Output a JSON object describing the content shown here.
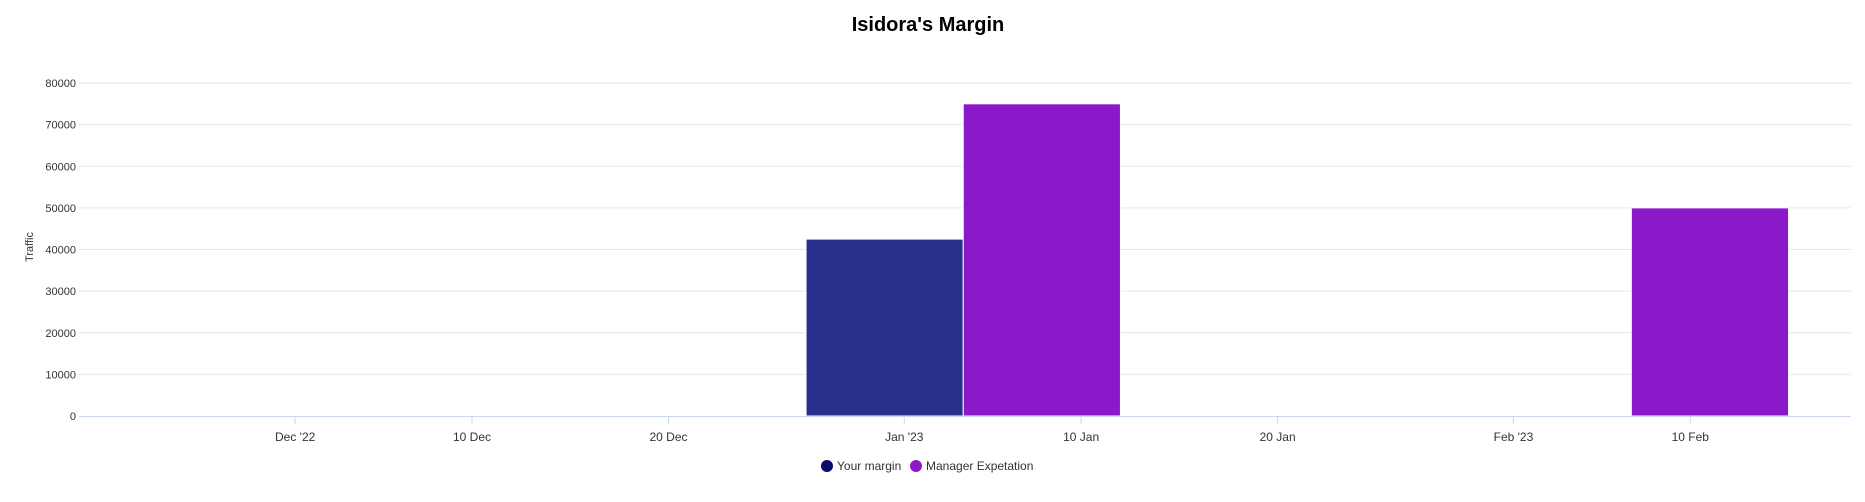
{
  "chart_data": {
    "type": "bar",
    "title": "Isidora's Margin",
    "ylabel": "Traffic",
    "xlabel": "",
    "ylim": [
      0,
      80000
    ],
    "yticks": [
      0,
      10000,
      20000,
      30000,
      40000,
      50000,
      60000,
      70000,
      80000
    ],
    "xlim": [
      "2022-11-20",
      "2023-02-22"
    ],
    "xticks": [
      {
        "date": "2022-12-01",
        "label": "Dec '22"
      },
      {
        "date": "2022-12-10",
        "label": "10 Dec"
      },
      {
        "date": "2022-12-20",
        "label": "20 Dec"
      },
      {
        "date": "2023-01-01",
        "label": "Jan '23"
      },
      {
        "date": "2023-01-10",
        "label": "10 Jan"
      },
      {
        "date": "2023-01-20",
        "label": "20 Jan"
      },
      {
        "date": "2023-02-01",
        "label": "Feb '23"
      },
      {
        "date": "2023-02-10",
        "label": "10 Feb"
      }
    ],
    "bar_period": "week",
    "series": [
      {
        "name": "Your margin",
        "color": "#27318b",
        "points": [
          {
            "x_start": "2022-12-27",
            "x_end": "2023-01-04",
            "y": 42500
          }
        ]
      },
      {
        "name": "Manager Expetation",
        "color": "#8b19c9",
        "points": [
          {
            "x_start": "2023-01-04",
            "x_end": "2023-01-12",
            "y": 75000
          },
          {
            "x_start": "2023-02-07",
            "x_end": "2023-02-15",
            "y": 50000
          }
        ]
      }
    ],
    "grid": true,
    "legend": "bottom-center"
  },
  "colors": {
    "your_margin_legend": "#0b0b6b",
    "manager_legend": "#8b19c9",
    "gridline": "#e6e6e6",
    "axis": "#ccd6eb"
  }
}
